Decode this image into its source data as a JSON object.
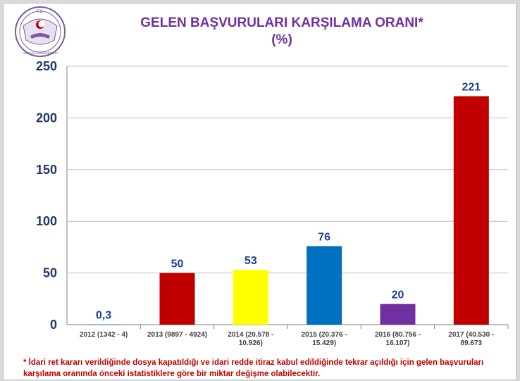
{
  "logo": {
    "top_text": "T.C.",
    "bottom_text": "ANAYASA MAHKEMESİ"
  },
  "colors": {
    "title": "#7030a0",
    "axis_tick": "#1f3864",
    "data_label": "#1f3f8f",
    "note": "#c00000"
  },
  "note": "* İdari ret kararı verildiğinde dosya kapatıldığı ve idari redde itiraz kabul edildiğinde tekrar açıldığı için gelen başvuruları karşılama oranında önceki istatistiklere göre bir miktar değişme olabilecektir.",
  "chart_data": {
    "type": "bar",
    "title": "GELEN BAŞVURULARI KARŞILAMA ORANI*",
    "subtitle": "(%)",
    "xlabel": "",
    "ylabel": "",
    "ylim": [
      0,
      250
    ],
    "yticks": [
      0,
      50,
      100,
      150,
      200,
      250
    ],
    "grid": true,
    "legend": "none",
    "categories": [
      [
        "2012 (1342 - 4)"
      ],
      [
        "2013 (9897 - 4924)"
      ],
      [
        "2014 (20.578 -",
        "10.926)"
      ],
      [
        "2015 (20.376 -",
        "15.429)"
      ],
      [
        "2016 (80.756 -",
        "16.107)"
      ],
      [
        "2017 (40.530 -",
        "89.673"
      ]
    ],
    "values": [
      0.3,
      50,
      53,
      76,
      20,
      221
    ],
    "data_labels": [
      "0,3",
      "50",
      "53",
      "76",
      "20",
      "221"
    ],
    "bar_colors": [
      "#1f77b4",
      "#c00000",
      "#ffff00",
      "#0070c0",
      "#7030a0",
      "#c00000"
    ]
  }
}
